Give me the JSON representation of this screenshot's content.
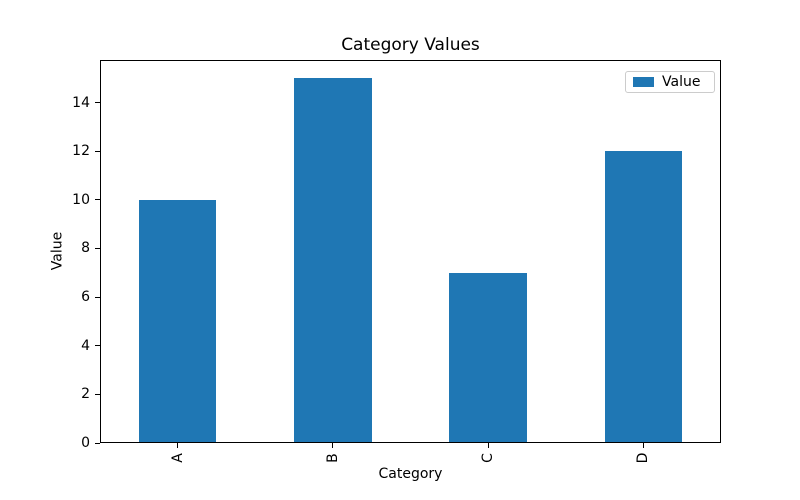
{
  "chart_data": {
    "type": "bar",
    "title": "Category Values",
    "xlabel": "Category",
    "ylabel": "Value",
    "categories": [
      "A",
      "B",
      "C",
      "D"
    ],
    "series": [
      {
        "name": "Value",
        "values": [
          10,
          15,
          7,
          12
        ]
      }
    ],
    "ylim": [
      0,
      15.75
    ],
    "yticks": [
      0,
      2,
      4,
      6,
      8,
      10,
      12,
      14
    ],
    "xtick_rotation": 90,
    "grid": false,
    "legend": {
      "position": "upper right",
      "entries": [
        "Value"
      ]
    },
    "colors": {
      "bar": "#1f77b4",
      "spine": "#000000",
      "legend_border": "#cccccc",
      "background": "#ffffff"
    }
  }
}
